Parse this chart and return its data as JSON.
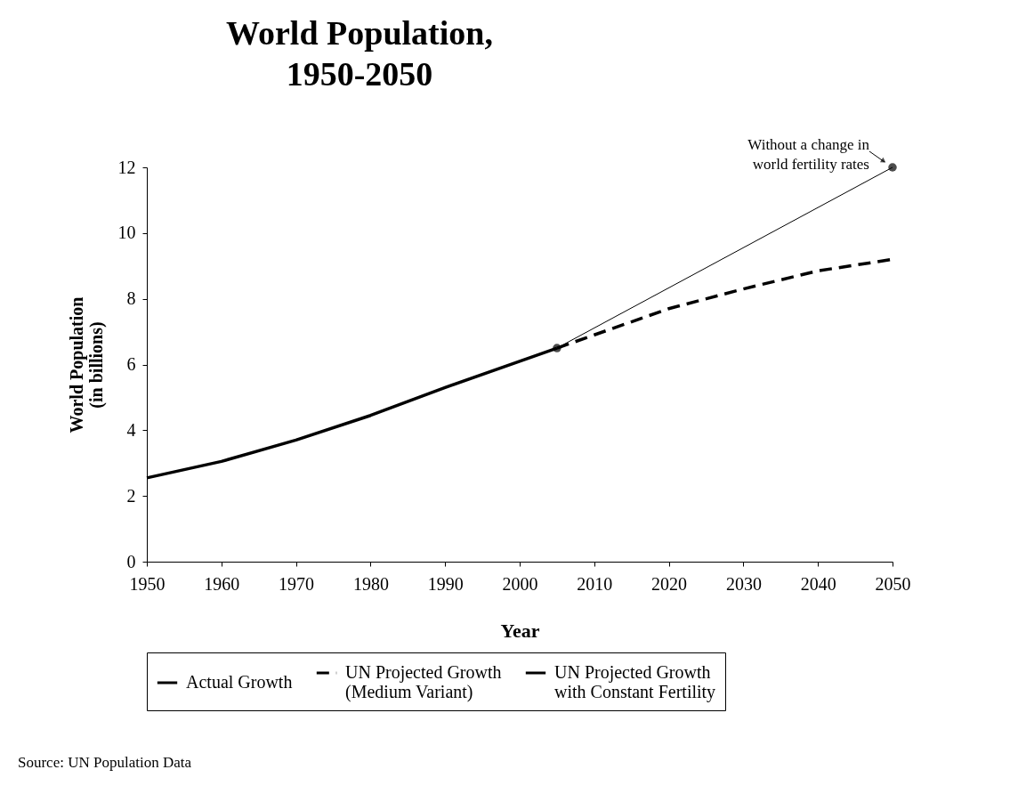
{
  "chart_data": {
    "type": "line",
    "title": "World Population, 1950-2050",
    "xlabel": "Year",
    "ylabel": "World Population (in billions)",
    "xlim": [
      1950,
      2050
    ],
    "xticks": [
      1950,
      1960,
      1970,
      1980,
      1990,
      2000,
      2010,
      2020,
      2030,
      2040,
      2050
    ],
    "ylim": [
      0,
      12
    ],
    "yticks": [
      0,
      2,
      4,
      6,
      8,
      10,
      12
    ],
    "grid": false,
    "legend": "bottom",
    "series": [
      {
        "name": "Actual Growth",
        "color": "#000000",
        "line_style": "solid",
        "x": [
          1950,
          1960,
          1970,
          1980,
          1990,
          2000,
          2005
        ],
        "values": [
          2.55,
          3.05,
          3.7,
          4.45,
          5.3,
          6.1,
          6.5
        ]
      },
      {
        "name": "UN Projected Growth (Medium Variant)",
        "color": "#000000",
        "line_style": "dashed",
        "x": [
          2005,
          2010,
          2020,
          2030,
          2040,
          2050
        ],
        "values": [
          6.5,
          6.9,
          7.7,
          8.3,
          8.85,
          9.2
        ]
      },
      {
        "name": "UN Projected Growth with Constant Fertility",
        "color": "#000000",
        "line_style": "solid",
        "marker": "circle",
        "x": [
          2005,
          2050
        ],
        "values": [
          6.5,
          12
        ]
      }
    ],
    "annotations": [
      {
        "text": "Without a change in world fertility rates",
        "x": 2050,
        "y": 12
      },
      "Source: UN Population Data"
    ]
  }
}
